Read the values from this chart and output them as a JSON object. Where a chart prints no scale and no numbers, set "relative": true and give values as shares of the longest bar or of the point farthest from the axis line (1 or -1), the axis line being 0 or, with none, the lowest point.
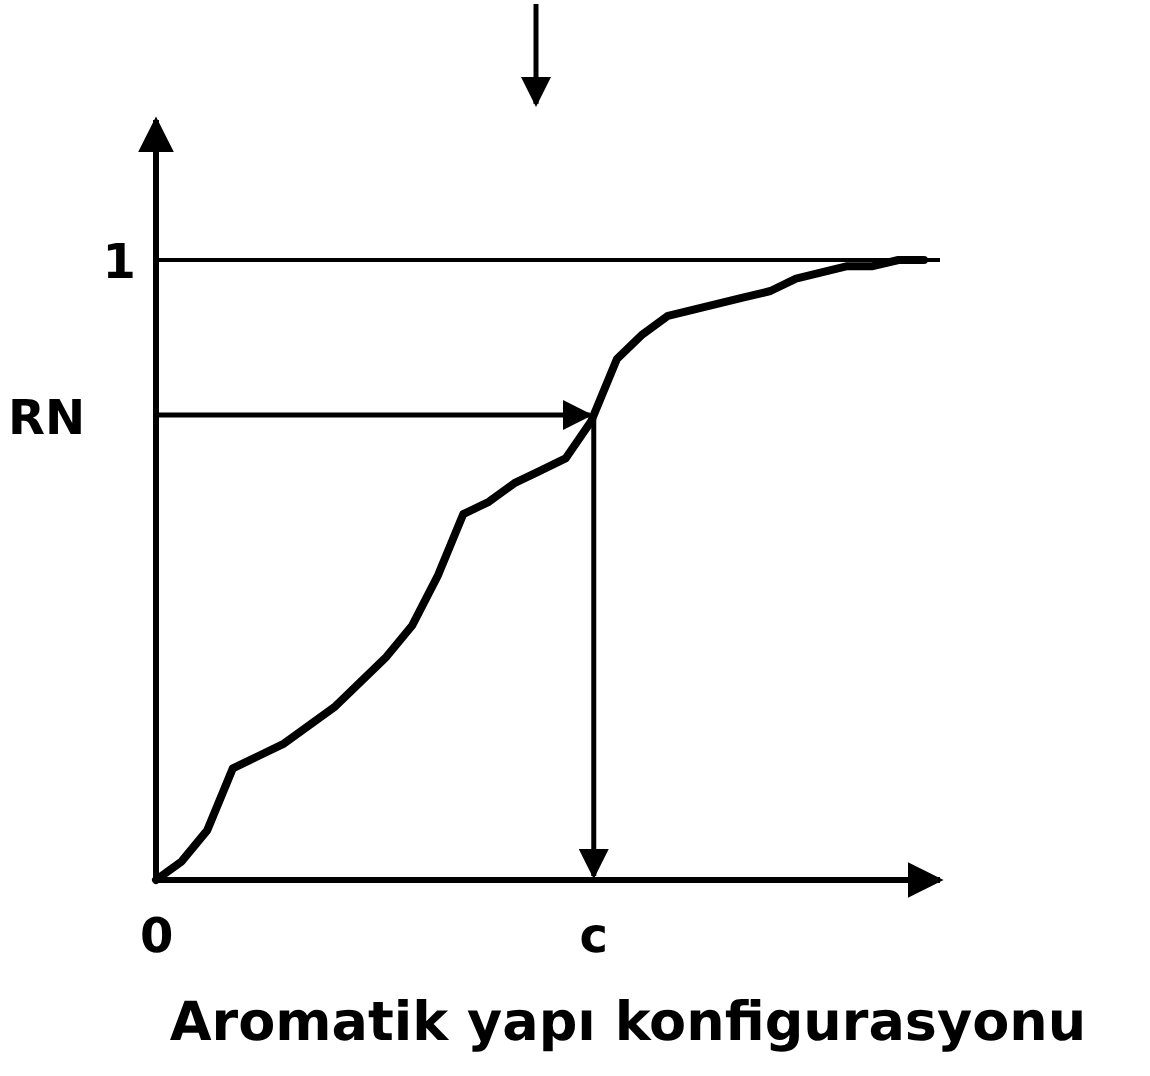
{
  "chart_data": {
    "type": "line",
    "xlabel": "Aromatik yapı konfigurasyonu",
    "ylabel": "RN",
    "relative": true,
    "categories": [
      null,
      null,
      null,
      null,
      null,
      null,
      null,
      null,
      null,
      null,
      null,
      null,
      null,
      null,
      null,
      null,
      null,
      null,
      null,
      null,
      null,
      null,
      null,
      null,
      null,
      null,
      null,
      null,
      null,
      null,
      null
    ],
    "annotations": [
      "0",
      "1",
      "c"
    ],
    "ref_lines": [
      {
        "axis": "y",
        "value": 1
      }
    ],
    "marker": "none",
    "line_style": "solid",
    "series": [
      {
        "color": "#000000",
        "values": [
          0,
          0.03,
          0.08,
          0.18,
          0.2,
          0.22,
          0.25,
          0.28,
          0.32,
          0.36,
          0.41,
          0.49,
          0.59,
          0.61,
          0.64,
          0.66,
          0.68,
          0.74,
          0.84,
          0.88,
          0.91,
          0.92,
          0.93,
          0.94,
          0.95,
          0.97,
          0.98,
          0.99,
          0.99,
          1,
          1
        ]
      }
    ]
  }
}
